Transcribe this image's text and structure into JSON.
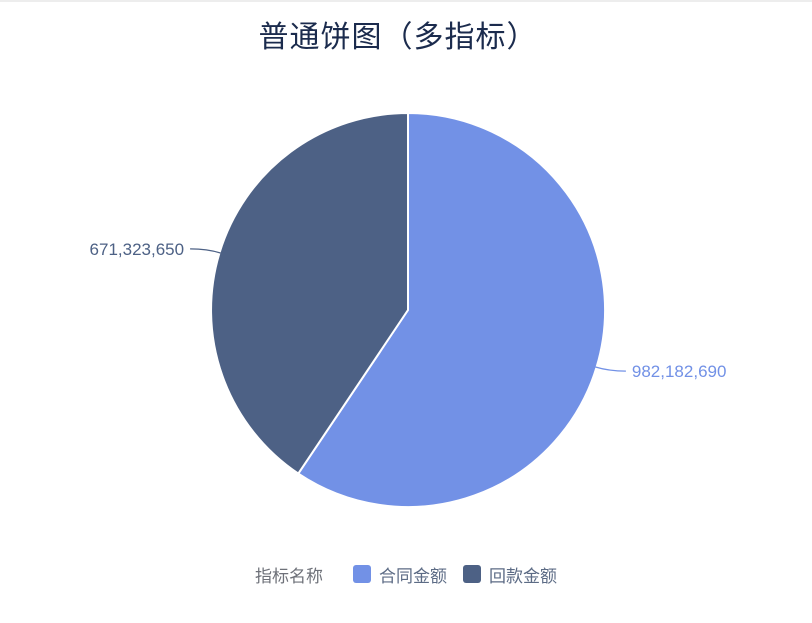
{
  "chart_data": {
    "type": "pie",
    "title": "普通饼图（多指标）",
    "title_color": "#1B2B4D",
    "legend_title": "指标名称",
    "legend_position": "bottom",
    "start_angle_deg_from_top": 0,
    "direction": "clockwise",
    "slice_border_color": "#ffffff",
    "background_color": "#ffffff",
    "series": [
      {
        "name": "合同金额",
        "value": 982182690,
        "label": "982,182,690",
        "color": "#7291E6"
      },
      {
        "name": "回款金额",
        "value": 671323650,
        "label": "671,323,650",
        "color": "#4D6185"
      }
    ],
    "legend_title_color": "#6E7179",
    "legend_item_text_color": "#5C6B85"
  }
}
